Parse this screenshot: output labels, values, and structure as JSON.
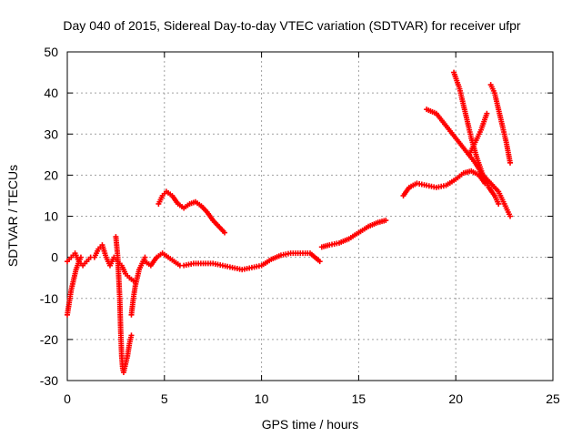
{
  "chart_data": {
    "type": "scatter",
    "title": "Day 040 of 2015, Sidereal Day-to-day VTEC variation (SDTVAR) for receiver ufpr",
    "xlabel": "GPS time / hours",
    "ylabel": "SDTVAR / TECUs",
    "xlim": [
      0,
      25
    ],
    "ylim": [
      -30,
      50
    ],
    "xticks": [
      "0",
      "5",
      "10",
      "15",
      "20",
      "25"
    ],
    "yticks": [
      "-30",
      "-20",
      "-10",
      "0",
      "10",
      "20",
      "30",
      "40",
      "50"
    ],
    "grid": true,
    "marker": "+",
    "color": "#ff0000",
    "series": [
      {
        "x": [
          0.0,
          0.1,
          0.2,
          0.3,
          0.45,
          0.6,
          0.7
        ],
        "y": [
          -14,
          -11,
          -8,
          -6,
          -3,
          -1,
          0
        ]
      },
      {
        "x": [
          0.0,
          0.2,
          0.4,
          0.6,
          0.8,
          1.0,
          1.2,
          1.4,
          1.6,
          1.8,
          2.0,
          2.2,
          2.4,
          2.6,
          2.8,
          3.0,
          3.2,
          3.5
        ],
        "y": [
          -1,
          0,
          1,
          -1,
          -2,
          -1,
          0,
          0,
          2,
          3,
          0,
          -2,
          0,
          -1,
          -2,
          -4,
          -5,
          -6
        ]
      },
      {
        "x": [
          2.5,
          2.6,
          2.7,
          2.75,
          2.8,
          2.85,
          2.9,
          3.0,
          3.1,
          3.2,
          3.3
        ],
        "y": [
          5,
          0,
          -10,
          -18,
          -24,
          -27,
          -28,
          -26,
          -24,
          -21,
          -19
        ]
      },
      {
        "x": [
          3.3,
          3.4,
          3.5,
          3.6,
          3.7,
          3.8,
          3.9,
          4.0
        ],
        "y": [
          -14,
          -10,
          -7,
          -5,
          -3,
          -2,
          -1,
          0
        ]
      },
      {
        "x": [
          4.0,
          4.3,
          4.6,
          4.9,
          5.2,
          5.5,
          5.8,
          6.0,
          6.5,
          7.0,
          7.5,
          8.0,
          8.5,
          9.0,
          9.5,
          10.0,
          10.5,
          11.0,
          11.5,
          12.0,
          12.5,
          13.0
        ],
        "y": [
          -1,
          -2,
          0,
          1,
          0,
          -1,
          -2,
          -2,
          -1.5,
          -1.5,
          -1.5,
          -2,
          -2.5,
          -3,
          -2.5,
          -2,
          -0.5,
          0.5,
          1,
          1,
          1,
          -1
        ]
      },
      {
        "x": [
          4.7,
          4.9,
          5.1,
          5.4,
          5.7,
          6.0,
          6.3,
          6.6,
          6.9,
          7.2,
          7.5,
          7.8,
          8.1
        ],
        "y": [
          13,
          15,
          16,
          15,
          13,
          12,
          13,
          13.5,
          12.5,
          11,
          9,
          7.5,
          6
        ]
      },
      {
        "x": [
          13.1,
          13.5,
          14.0,
          14.5,
          15.0,
          15.5,
          16.0,
          16.4
        ],
        "y": [
          2.5,
          3,
          3.5,
          4.5,
          6,
          7.5,
          8.5,
          9
        ]
      },
      {
        "x": [
          17.3,
          17.6,
          18.0,
          18.5,
          19.0,
          19.5,
          20.0,
          20.4,
          20.8,
          21.2,
          21.5
        ],
        "y": [
          15,
          17,
          18,
          17.5,
          17,
          17.5,
          19,
          20.5,
          21,
          20,
          18
        ]
      },
      {
        "x": [
          18.5,
          19.0,
          19.5,
          20.0,
          20.5,
          21.0,
          21.4,
          21.8,
          22.2,
          22.5,
          22.8
        ],
        "y": [
          36,
          35,
          32,
          29,
          26,
          23,
          20,
          18,
          16,
          13,
          10
        ]
      },
      {
        "x": [
          19.9,
          20.2,
          20.5,
          20.8,
          21.1,
          21.4,
          21.7,
          22.0,
          22.2
        ],
        "y": [
          45,
          41,
          35,
          29,
          24,
          20,
          17,
          15,
          13
        ]
      },
      {
        "x": [
          20.7,
          21.0,
          21.3,
          21.6
        ],
        "y": [
          25,
          28,
          31,
          35
        ]
      },
      {
        "x": [
          21.8,
          22.0,
          22.2,
          22.4,
          22.6,
          22.8
        ],
        "y": [
          42,
          40,
          36,
          32,
          28,
          23
        ]
      }
    ]
  }
}
